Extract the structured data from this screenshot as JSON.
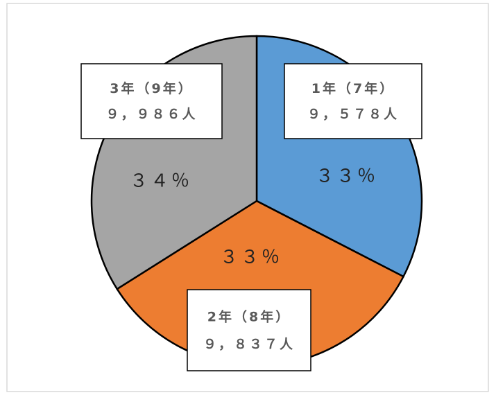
{
  "chart_data": {
    "type": "pie",
    "categories": [
      "1年（7年）",
      "2年（8年）",
      "3年（9年）"
    ],
    "values": [
      9578,
      9837,
      9986
    ],
    "value_labels": [
      "９，５７８人",
      "９，８３７人",
      "９，９８６人"
    ],
    "percent_labels": [
      "３３％",
      "３３％",
      "３４％"
    ],
    "colors": [
      "#5b9bd5",
      "#ed7d31",
      "#a5a5a5"
    ]
  }
}
